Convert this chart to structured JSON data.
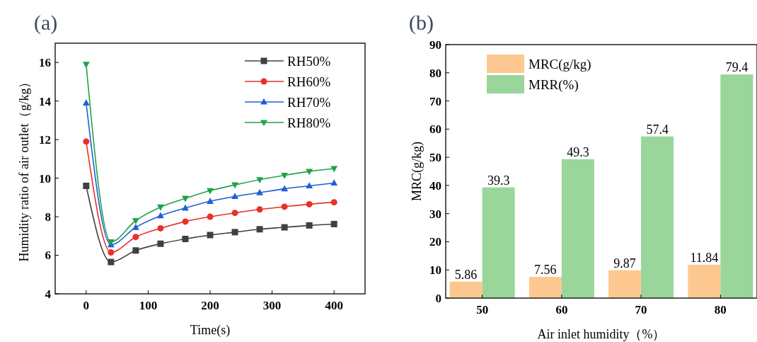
{
  "chart_data": [
    {
      "type": "line",
      "title": "(a)",
      "xlabel": "Time(s)",
      "ylabel": "Humidity ratio of air outlet（g/kg）",
      "x": [
        0,
        40,
        80,
        120,
        160,
        200,
        240,
        280,
        320,
        360,
        400
      ],
      "series": [
        {
          "name": "RH50%",
          "color": "#404040",
          "marker": "square",
          "values": [
            9.6,
            5.65,
            6.25,
            6.6,
            6.85,
            7.05,
            7.2,
            7.35,
            7.45,
            7.55,
            7.62
          ]
        },
        {
          "name": "RH60%",
          "color": "#e8302a",
          "marker": "circle",
          "values": [
            11.9,
            6.15,
            6.95,
            7.4,
            7.75,
            8.0,
            8.2,
            8.38,
            8.52,
            8.65,
            8.75
          ]
        },
        {
          "name": "RH70%",
          "color": "#1f5fd6",
          "marker": "triangle",
          "values": [
            13.9,
            6.55,
            7.45,
            8.05,
            8.45,
            8.8,
            9.05,
            9.25,
            9.45,
            9.6,
            9.75
          ]
        },
        {
          "name": "RH80%",
          "color": "#1fa24a",
          "marker": "triangle-down",
          "values": [
            15.9,
            6.7,
            7.8,
            8.5,
            8.95,
            9.35,
            9.65,
            9.92,
            10.15,
            10.35,
            10.5
          ]
        }
      ],
      "xlim": [
        -50,
        450
      ],
      "xticks": [
        0,
        100,
        200,
        300,
        400
      ],
      "ylim": [
        4,
        17
      ],
      "yticks": [
        4,
        6,
        8,
        10,
        12,
        14,
        16
      ],
      "legend": "top right",
      "grid": false
    },
    {
      "type": "bar",
      "title": "(b)",
      "xlabel": "Air inlet humidity（%）",
      "ylabel": "MRC(g/kg)",
      "categories": [
        "50",
        "60",
        "70",
        "80"
      ],
      "series": [
        {
          "name": "MRC(g/kg)",
          "color": "#fdc88f",
          "values": [
            5.86,
            7.56,
            9.87,
            11.84
          ]
        },
        {
          "name": "MRR(%)",
          "color": "#9ad59a",
          "values": [
            39.3,
            49.3,
            57.4,
            79.4
          ]
        }
      ],
      "ylim": [
        0,
        90
      ],
      "yticks": [
        0,
        10,
        20,
        30,
        40,
        50,
        60,
        70,
        80,
        90
      ],
      "legend": "top left",
      "data_labels": true,
      "grid": false
    }
  ]
}
